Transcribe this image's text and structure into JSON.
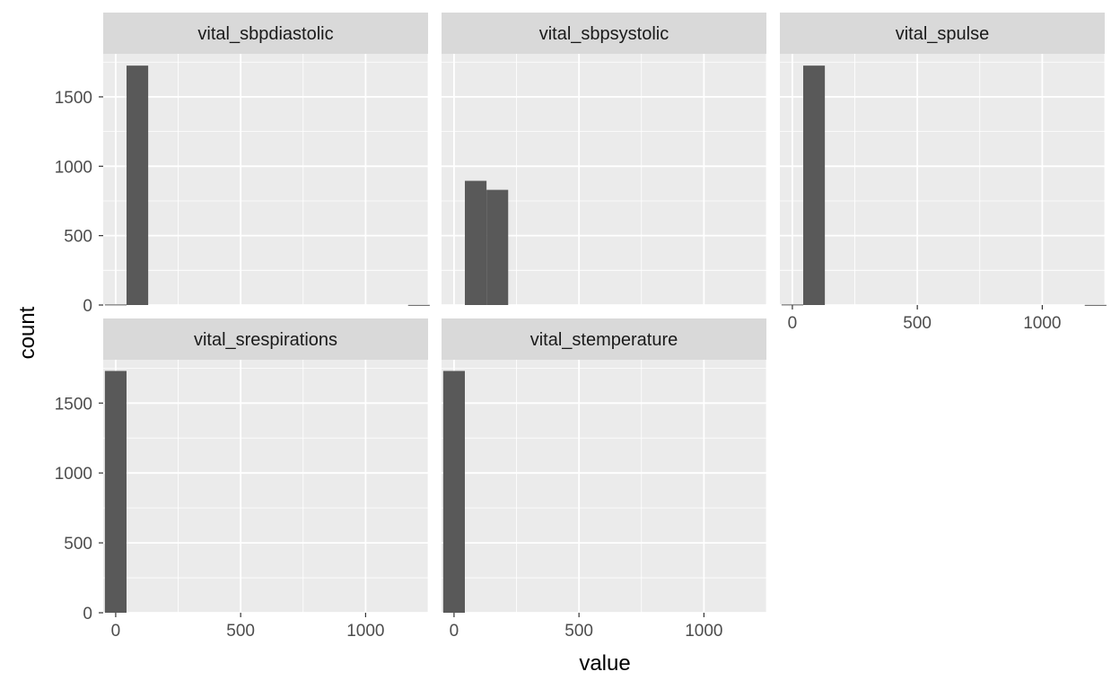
{
  "chart_data": {
    "type": "histogram",
    "layout": "facet_wrap",
    "xlabel": "value",
    "ylabel": "count",
    "xlim": [
      -50,
      1250
    ],
    "ylim": [
      0,
      1810
    ],
    "x_ticks": [
      0,
      500,
      1000
    ],
    "y_ticks": [
      0,
      500,
      1000,
      1500
    ],
    "bin_width": 86.67,
    "bin_centers": [
      0,
      86.67,
      173.33,
      260,
      346.67,
      433.33,
      520,
      606.67,
      693.33,
      780,
      866.67,
      953.33,
      1040,
      1126.67,
      1213.33
    ],
    "colors": {
      "panel_bg": "#EBEBEB",
      "strip_bg": "#D9D9D9",
      "grid": "#FFFFFF",
      "bar": "#595959"
    },
    "panels": [
      {
        "name": "vital_sbpdiastolic",
        "counts": [
          4,
          1725,
          0,
          0,
          0,
          0,
          0,
          0,
          0,
          0,
          0,
          0,
          0,
          0,
          1
        ]
      },
      {
        "name": "vital_sbpsystolic",
        "counts": [
          0,
          895,
          830,
          0,
          0,
          0,
          0,
          0,
          0,
          0,
          0,
          0,
          0,
          0,
          0
        ]
      },
      {
        "name": "vital_spulse",
        "counts": [
          4,
          1725,
          0,
          0,
          0,
          0,
          0,
          0,
          0,
          0,
          0,
          0,
          0,
          0,
          1
        ]
      },
      {
        "name": "vital_srespirations",
        "counts": [
          1730,
          0,
          0,
          0,
          0,
          0,
          0,
          0,
          0,
          0,
          0,
          0,
          0,
          0,
          0
        ]
      },
      {
        "name": "vital_stemperature",
        "counts": [
          1730,
          0,
          0,
          0,
          0,
          0,
          0,
          0,
          0,
          0,
          0,
          0,
          0,
          0,
          0
        ]
      }
    ]
  }
}
